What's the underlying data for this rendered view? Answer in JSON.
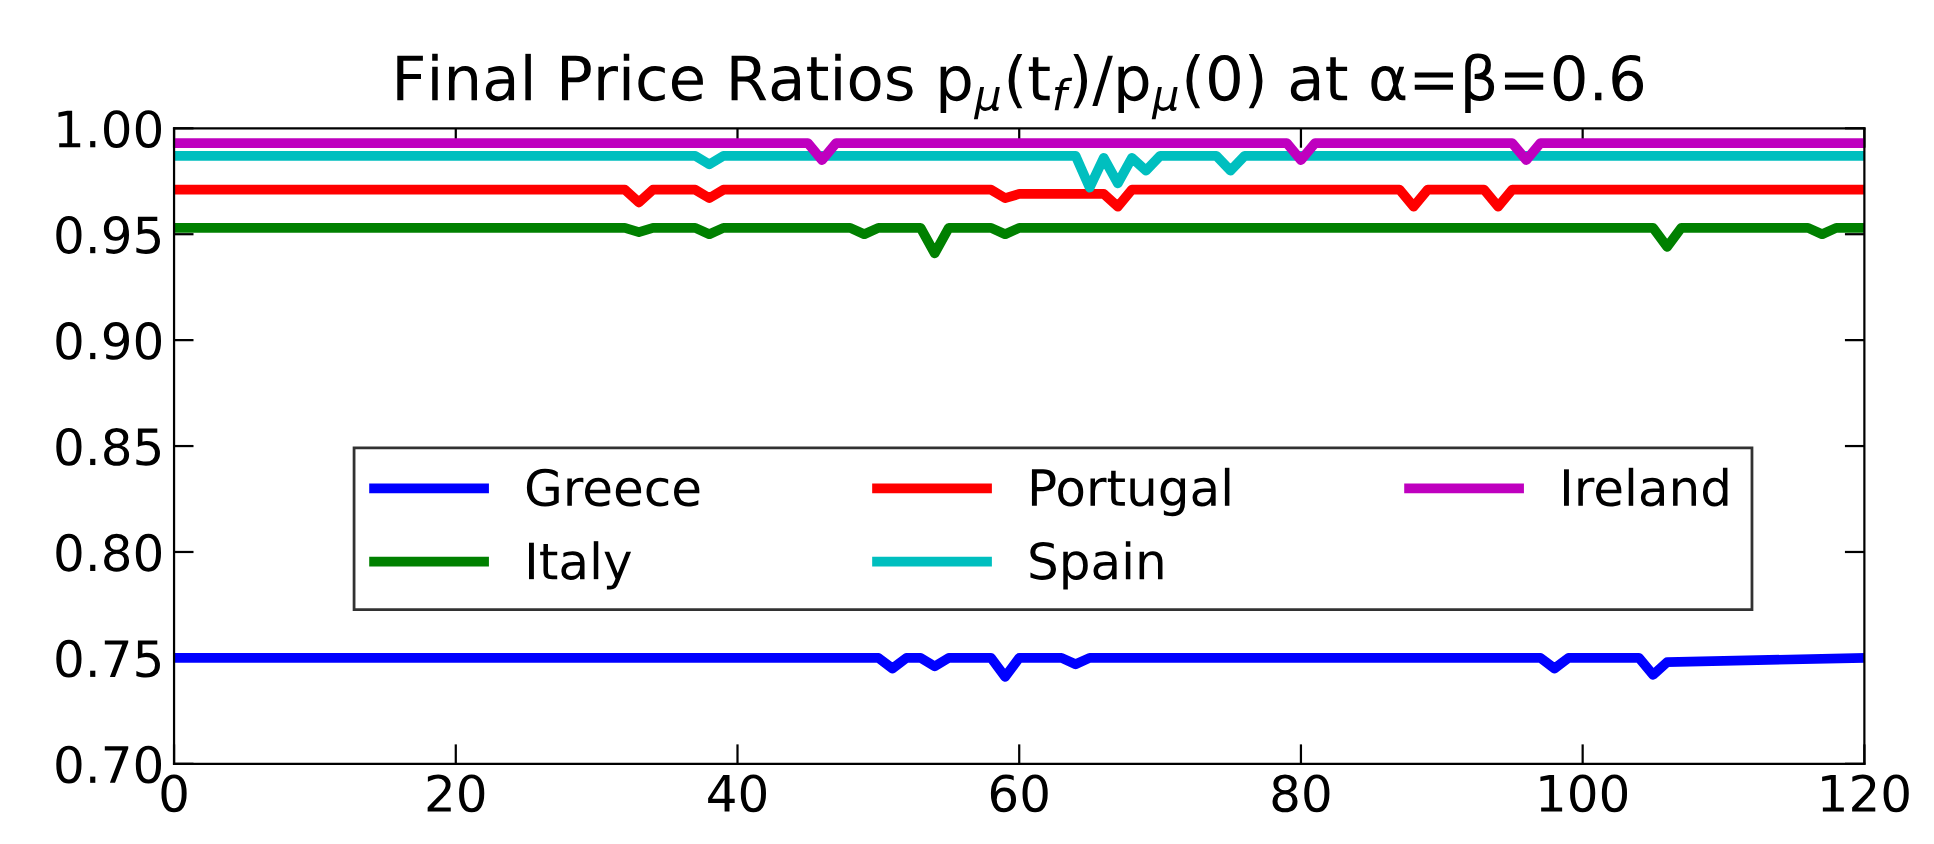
{
  "chart_data": {
    "type": "line",
    "title": "Final Price Ratios p$_{μ}$(t$_{f}$)/p$_{μ}$(0) at α=β=0.6",
    "xlim": [
      0,
      120
    ],
    "xticks": [
      0,
      20,
      40,
      60,
      80,
      100,
      120
    ],
    "ylim": [
      0.7,
      1.0
    ],
    "yticks": [
      {
        "value": 0.7,
        "label": "0.70"
      },
      {
        "value": 0.75,
        "label": "0.75"
      },
      {
        "value": 0.8,
        "label": "0.80"
      },
      {
        "value": 0.85,
        "label": "0.85"
      },
      {
        "value": 0.9,
        "label": "0.90"
      },
      {
        "value": 0.95,
        "label": "0.95"
      },
      {
        "value": 1.0,
        "label": "1.00"
      }
    ],
    "grid": false,
    "legend": "center",
    "marker": "none",
    "line_style": "solid",
    "series": [
      {
        "name": "Greece",
        "color": "#0000ff",
        "x": [
          0,
          50,
          51,
          52,
          53,
          54,
          55,
          58,
          59,
          60,
          63,
          64,
          65,
          97,
          98,
          99,
          104,
          105,
          106,
          120
        ],
        "values": [
          0.75,
          0.75,
          0.745,
          0.75,
          0.75,
          0.746,
          0.75,
          0.75,
          0.741,
          0.75,
          0.75,
          0.747,
          0.75,
          0.75,
          0.745,
          0.75,
          0.75,
          0.742,
          0.748,
          0.75
        ]
      },
      {
        "name": "Italy",
        "color": "#008000",
        "x": [
          0,
          32,
          33,
          34,
          37,
          38,
          39,
          48,
          49,
          50,
          53,
          54,
          55,
          58,
          59,
          60,
          105,
          106,
          107,
          116,
          117,
          118,
          120
        ],
        "values": [
          0.953,
          0.953,
          0.951,
          0.953,
          0.953,
          0.95,
          0.953,
          0.953,
          0.95,
          0.953,
          0.953,
          0.941,
          0.953,
          0.953,
          0.95,
          0.953,
          0.953,
          0.944,
          0.953,
          0.953,
          0.95,
          0.953,
          0.953
        ]
      },
      {
        "name": "Portugal",
        "color": "#ff0000",
        "x": [
          0,
          32,
          33,
          34,
          37,
          38,
          39,
          58,
          59,
          60,
          66,
          67,
          68,
          87,
          88,
          89,
          93,
          94,
          95,
          120
        ],
        "values": [
          0.971,
          0.971,
          0.965,
          0.971,
          0.971,
          0.967,
          0.971,
          0.971,
          0.967,
          0.969,
          0.969,
          0.963,
          0.971,
          0.971,
          0.963,
          0.971,
          0.971,
          0.963,
          0.971,
          0.971
        ]
      },
      {
        "name": "Spain",
        "color": "#00bfbf",
        "x": [
          0,
          37,
          38,
          39,
          64,
          65,
          66,
          67,
          68,
          69,
          70,
          74,
          75,
          76,
          120
        ],
        "values": [
          0.987,
          0.987,
          0.983,
          0.987,
          0.987,
          0.972,
          0.986,
          0.974,
          0.986,
          0.98,
          0.987,
          0.987,
          0.98,
          0.987,
          0.987
        ]
      },
      {
        "name": "Ireland",
        "color": "#bf00bf",
        "x": [
          0,
          45,
          46,
          47,
          79,
          80,
          81,
          95,
          96,
          97,
          120
        ],
        "values": [
          0.993,
          0.993,
          0.985,
          0.993,
          0.993,
          0.985,
          0.993,
          0.993,
          0.985,
          0.993,
          0.993
        ]
      }
    ]
  }
}
